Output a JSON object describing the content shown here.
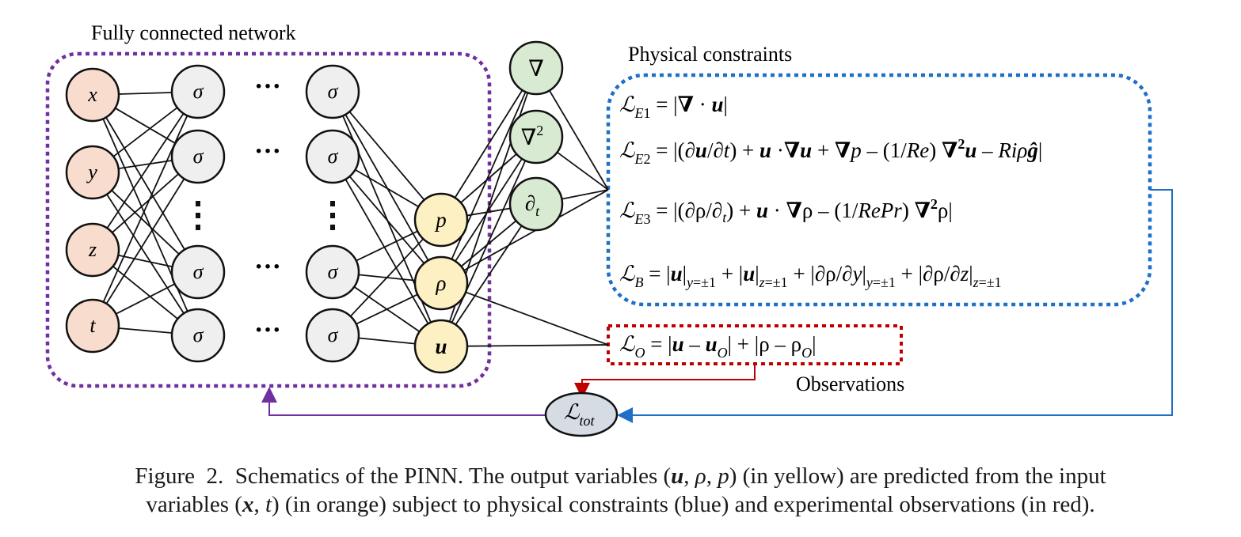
{
  "labels": {
    "network": "Fully connected network",
    "physical": "Physical constraints",
    "observations": "Observations"
  },
  "inputs": [
    "x",
    "y",
    "z",
    "t"
  ],
  "hidden_symbol": "σ",
  "ellipsis": "···",
  "outputs": [
    "p",
    "ρ",
    "u"
  ],
  "operators": [
    "∇",
    "∇²",
    "∂t"
  ],
  "losses": {
    "E1": "𝓛E1 = |∇ · u|",
    "E2": "𝓛E2 = |(∂u/∂t) + u ·∇u + ∇p – (1/Re) ∇²u – Riρĝ|",
    "E3": "𝓛E3 = |(∂ρ/∂t) + u · ∇ρ – (1/RePr) ∇²ρ|",
    "B": "𝓛B = |u|y=±1 + |u|z=±1 + |∂ρ/∂y|y=±1 + |∂ρ/∂z|z=±1",
    "O": "𝓛O = |u – uO| + |ρ – ρO|",
    "tot": "𝓛tot"
  },
  "caption": {
    "line1": "Figure 2. Schematics of the PINN. The output variables (u, ρ, p) (in yellow) are predicted from the input",
    "line2": "variables (x, t) (in orange) subject to physical constraints (blue) and experimental observations (in red)."
  },
  "colors": {
    "input_fill": "#f8dccd",
    "hidden_fill": "#efefef",
    "output_fill": "#fdf0c2",
    "operator_fill": "#d9ead3",
    "total_fill": "#d6dce4",
    "network_border": "#7030a0",
    "physics_border": "#1f6fc6",
    "observation_border": "#c00000"
  }
}
